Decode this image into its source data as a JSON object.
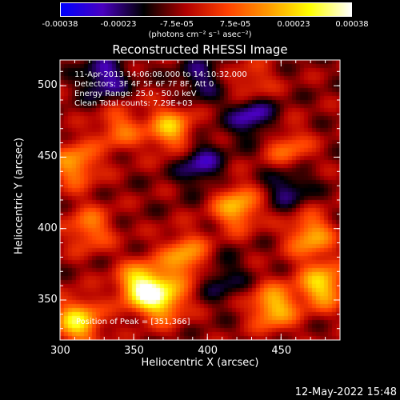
{
  "colorbar": {
    "ticks": [
      "-0.00038",
      "-0.00023",
      "-7.5e-05",
      "7.5e-05",
      "0.00023",
      "0.00038"
    ],
    "unit_text": "(photons cm⁻² s⁻¹ asec⁻²)",
    "range": [
      -0.00038,
      0.00038
    ],
    "colormap": [
      "#0000ff",
      "#4a00c0",
      "#000000",
      "#b00000",
      "#ff4000",
      "#ff9a00",
      "#ffff00",
      "#ffffff"
    ]
  },
  "info": {
    "line1": "11-Apr-2013 14:06:08.000 to 14:10:32.000",
    "line2": "Detectors: 3F 4F 5F 6F 7F 8F, Att 0",
    "line3": "Energy Range: 25.0 - 50.0 keV",
    "line4": "Clean     Total counts: 7.29E+03"
  },
  "peak_text": "Position of Peak = [351,366]",
  "footer_date": "12-May-2022 15:48",
  "chart_data": {
    "type": "heatmap",
    "title": "Reconstructed RHESSI Image",
    "xlabel": "Heliocentric X (arcsec)",
    "ylabel": "Heliocentric Y (arcsec)",
    "xlim": [
      300,
      490
    ],
    "ylim": [
      322,
      518
    ],
    "xticks": [
      "300",
      "350",
      "400",
      "450"
    ],
    "yticks": [
      "350",
      "400",
      "450",
      "500"
    ],
    "xtick_values": [
      300,
      350,
      400,
      450
    ],
    "ytick_values": [
      350,
      400,
      450,
      500
    ],
    "grid": false,
    "peak": [
      351,
      366
    ],
    "hotspots": [
      {
        "x": 355,
        "y": 360,
        "v": 0.00038
      },
      {
        "x": 312,
        "y": 335,
        "v": 0.00034
      },
      {
        "x": 370,
        "y": 350,
        "v": 0.0003
      },
      {
        "x": 385,
        "y": 380,
        "v": 0.00026
      },
      {
        "x": 445,
        "y": 345,
        "v": 0.0003
      },
      {
        "x": 478,
        "y": 360,
        "v": 0.00032
      },
      {
        "x": 470,
        "y": 395,
        "v": 0.00026
      },
      {
        "x": 420,
        "y": 415,
        "v": 0.00028
      },
      {
        "x": 375,
        "y": 470,
        "v": 0.00028
      },
      {
        "x": 310,
        "y": 445,
        "v": 0.00025
      },
      {
        "x": 340,
        "y": 470,
        "v": 0.00018
      },
      {
        "x": 455,
        "y": 455,
        "v": 0.00018
      },
      {
        "x": 430,
        "y": 500,
        "v": 0.00015
      },
      {
        "x": 320,
        "y": 400,
        "v": 0.0002
      }
    ],
    "coldspots": [
      {
        "x": 330,
        "y": 505,
        "v": -0.0002
      },
      {
        "x": 430,
        "y": 480,
        "v": -0.00022
      },
      {
        "x": 395,
        "y": 445,
        "v": -0.00018
      },
      {
        "x": 455,
        "y": 430,
        "v": -0.00016
      },
      {
        "x": 410,
        "y": 365,
        "v": -0.00012
      },
      {
        "x": 395,
        "y": 505,
        "v": -0.00014
      }
    ]
  }
}
